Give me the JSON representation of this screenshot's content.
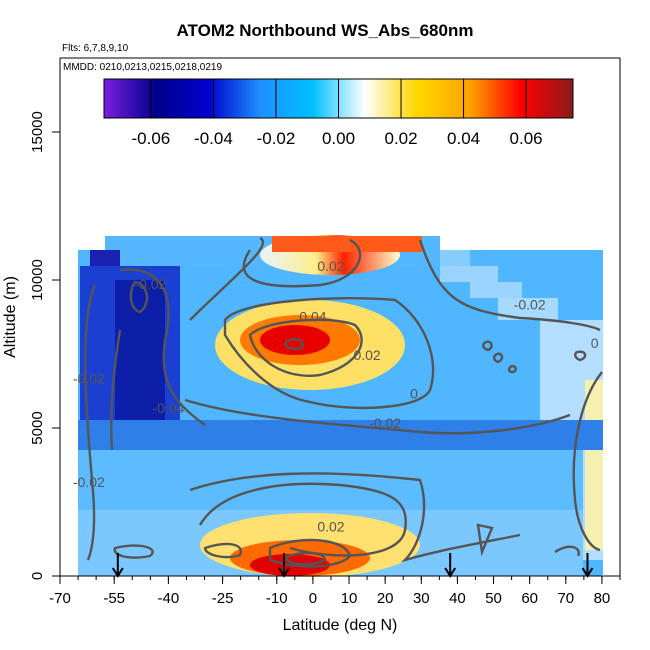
{
  "chart_data": {
    "type": "heatmap",
    "title": "ATOM2 Northbound WS_Abs_680nm",
    "subtitle_flights": "Flts: 6,7,8,9,10",
    "subtitle_dates": "MMDD: 0210,0213,0215,0218,0219",
    "xlabel": "Latitude (deg N)",
    "ylabel": "Altitude (m)",
    "xlim": [
      -70,
      85
    ],
    "ylim": [
      0,
      17500
    ],
    "x_ticks": [
      "-70",
      "-55",
      "-40",
      "-25",
      "-10",
      "0",
      "10",
      "20",
      "30",
      "40",
      "50",
      "60",
      "70",
      "80"
    ],
    "x_tick_values": [
      -70,
      -55,
      -40,
      -25,
      -10,
      0,
      10,
      20,
      30,
      40,
      50,
      60,
      70,
      80
    ],
    "y_ticks": [
      "0",
      "5000",
      "10000",
      "15000"
    ],
    "y_tick_values": [
      0,
      5000,
      10000,
      15000
    ],
    "colorbar": {
      "range": [
        -0.075,
        0.075
      ],
      "ticks": [
        "-0.06",
        "-0.04",
        "-0.02",
        "0.00",
        "0.02",
        "0.04",
        "0.06"
      ],
      "tick_values": [
        -0.06,
        -0.04,
        -0.02,
        0.0,
        0.02,
        0.04,
        0.06
      ],
      "colors": [
        "#7a1fe0",
        "#00008b",
        "#0000cd",
        "#1e90ff",
        "#00bfff",
        "#ffffff",
        "#ffd700",
        "#ffa500",
        "#ff0000",
        "#8b1a1a"
      ]
    },
    "contour_labels": [
      {
        "text": "-0.02",
        "x": -45,
        "y": 9700
      },
      {
        "text": "0.02",
        "x": 5,
        "y": 10300
      },
      {
        "text": "0.04",
        "x": 0,
        "y": 8600
      },
      {
        "text": "0.02",
        "x": 15,
        "y": 7300
      },
      {
        "text": "0",
        "x": 28,
        "y": 6000
      },
      {
        "text": "-0.02",
        "x": 20,
        "y": 5000
      },
      {
        "text": "-0.04",
        "x": -40,
        "y": 5500
      },
      {
        "text": "-0.02",
        "x": -62,
        "y": 6500
      },
      {
        "text": "-0.02",
        "x": -62,
        "y": 3000
      },
      {
        "text": "-0.02",
        "x": 60,
        "y": 9000
      },
      {
        "text": "0",
        "x": 78,
        "y": 7700
      },
      {
        "text": "0.02",
        "x": 5,
        "y": 1500
      }
    ],
    "flight_arrows_lat": [
      -54,
      -8,
      38,
      76
    ],
    "legend_placement": "top-inside"
  }
}
